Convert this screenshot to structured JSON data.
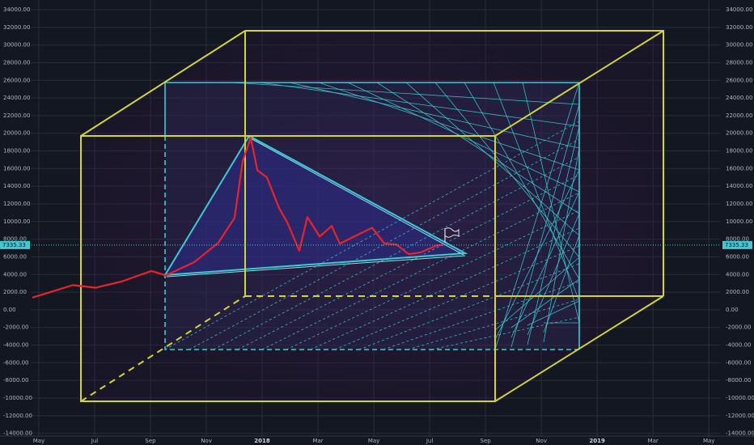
{
  "chart_data": {
    "type": "line",
    "x": [
      -0.23,
      1.22,
      2.03,
      2.96,
      4.03,
      4.55,
      5.57,
      6.43,
      7.01,
      7.3,
      7.59,
      7.83,
      8.17,
      8.61,
      8.9,
      9.33,
      9.62,
      10.06,
      10.49,
      10.78,
      11.36,
      11.94,
      12.38,
      12.81,
      13.25,
      13.68,
      14.26,
      14.49
    ],
    "series": [
      {
        "color": "#e8242a",
        "values": [
          1380,
          2800,
          2500,
          3200,
          4400,
          3900,
          5400,
          7600,
          10400,
          16800,
          19500,
          15800,
          15000,
          11500,
          9900,
          6700,
          10500,
          8300,
          9500,
          7500,
          8400,
          9300,
          7500,
          7400,
          6300,
          6500,
          7300,
          7335.33
        ]
      }
    ],
    "last_price": {
      "value": 7335.33,
      "label": "7335.33"
    },
    "xlim": [
      -1.39,
      24.4
    ],
    "xticks": [
      {
        "value": 0,
        "label": "May"
      },
      {
        "value": 2,
        "label": "Jul"
      },
      {
        "value": 4,
        "label": "Sep"
      },
      {
        "value": 6,
        "label": "Nov"
      },
      {
        "value": 8,
        "label": "2018"
      },
      {
        "value": 10,
        "label": "Mar"
      },
      {
        "value": 12,
        "label": "May"
      },
      {
        "value": 14,
        "label": "Jul"
      },
      {
        "value": 16,
        "label": "Sep"
      },
      {
        "value": 18,
        "label": "Nov"
      },
      {
        "value": 20,
        "label": "2019"
      },
      {
        "value": 22,
        "label": "Mar"
      },
      {
        "value": 24,
        "label": "May"
      }
    ],
    "ylim": [
      -14400,
      35100
    ],
    "yticks": [
      {
        "value": 34000,
        "label": "34000.00"
      },
      {
        "value": 32000,
        "label": "32000.00"
      },
      {
        "value": 30000,
        "label": "30000.00"
      },
      {
        "value": 28000,
        "label": "28000.00"
      },
      {
        "value": 26000,
        "label": "26000.00"
      },
      {
        "value": 24000,
        "label": "24000.00"
      },
      {
        "value": 22000,
        "label": "22000.00"
      },
      {
        "value": 20000,
        "label": "20000.00"
      },
      {
        "value": 18000,
        "label": "18000.00"
      },
      {
        "value": 16000,
        "label": "16000.00"
      },
      {
        "value": 14000,
        "label": "14000.00"
      },
      {
        "value": 12000,
        "label": "12000.00"
      },
      {
        "value": 10000,
        "label": "10000.00"
      },
      {
        "value": 8000,
        "label": "8000.00"
      },
      {
        "value": 6000,
        "label": "6000.00"
      },
      {
        "value": 4000,
        "label": "4000.00"
      },
      {
        "value": 2000,
        "label": "2000.00"
      },
      {
        "value": 0,
        "label": "0.00"
      },
      {
        "value": -2000,
        "label": "-2000.00"
      },
      {
        "value": -4000,
        "label": "-4000.00"
      },
      {
        "value": -6000,
        "label": "-6000.00"
      },
      {
        "value": -8000,
        "label": "-8000.00"
      },
      {
        "value": -10000,
        "label": "-10000.00"
      },
      {
        "value": -12000,
        "label": "-12000.00"
      },
      {
        "value": -14000,
        "label": "-14000.00"
      }
    ],
    "grid": true
  }
}
